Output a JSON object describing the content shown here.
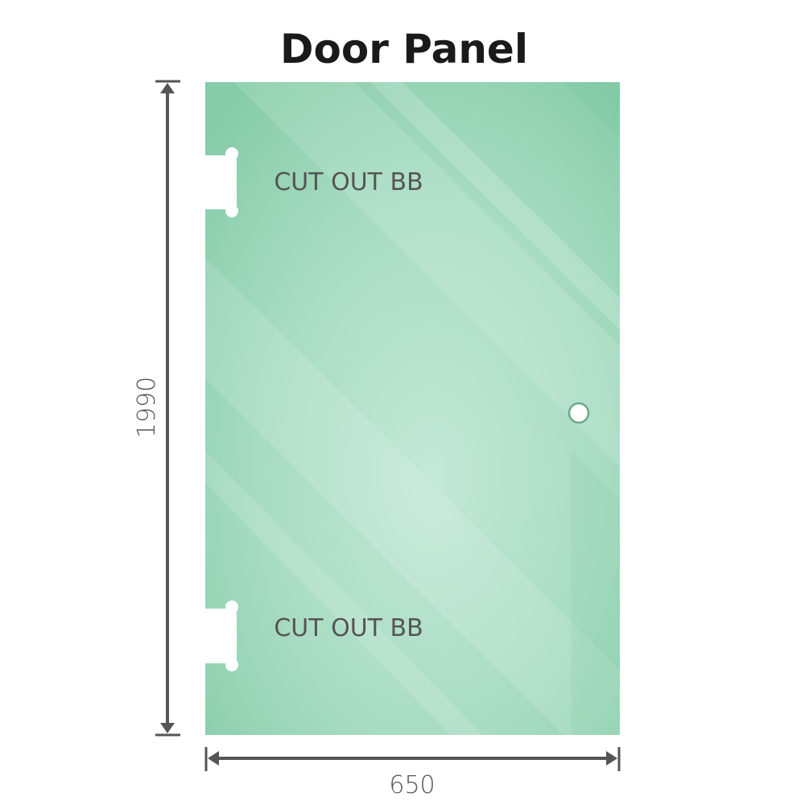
{
  "title": "Door Panel",
  "cutout_top_label": "CUT OUT BB",
  "cutout_bottom_label": "CUT OUT BB",
  "height_label": "1990",
  "width_label": "650",
  "colors": {
    "glass": "#8ed0ae",
    "glass_light": "#c3e8d7",
    "dimension_line": "#555555"
  }
}
